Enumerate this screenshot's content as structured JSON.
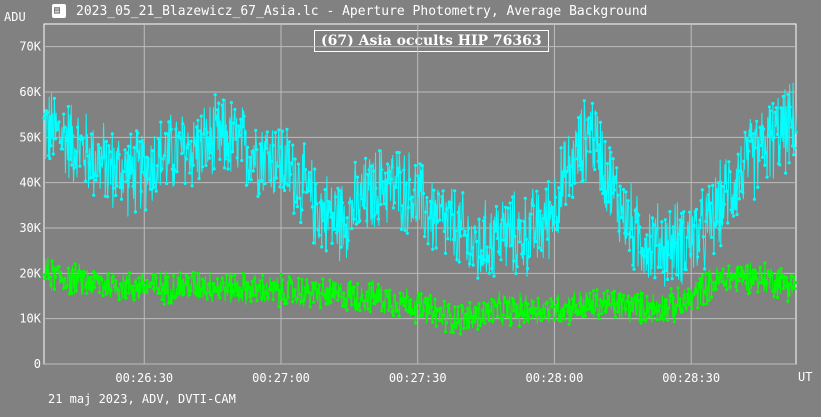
{
  "window": {
    "title": "2023_05_21_Blazewicz_67_Asia.lc - Aperture Photometry, Average Background",
    "icon": "photometry-app-icon"
  },
  "chart_data": {
    "type": "scatter",
    "title": "(67) Asia occults HIP 76363",
    "ylabel": "ADU",
    "xlabel": "UT",
    "footer": "21 maj 2023, ADV, DVTI-CAM",
    "ylim": [
      0,
      75000
    ],
    "xlim": [
      "00:26:08",
      "00:28:53"
    ],
    "x_ticks": [
      "00:26:30",
      "00:27:00",
      "00:27:30",
      "00:28:00",
      "00:28:30"
    ],
    "y_ticks": [
      "0",
      "10K",
      "20K",
      "30K",
      "40K",
      "50K",
      "60K",
      "70K"
    ],
    "y_tick_values": [
      0,
      10000,
      20000,
      30000,
      40000,
      50000,
      60000,
      70000
    ],
    "grid": true,
    "colors": {
      "background": "#818181",
      "grid": "#bdbdbd",
      "axis": "#ffffff"
    },
    "series": [
      {
        "color": "#00ffff",
        "time_s": [
          0,
          5,
          10,
          15,
          20,
          25,
          30,
          35,
          40,
          45,
          50,
          55,
          60,
          65,
          70,
          75,
          80,
          85,
          90,
          95,
          100,
          105,
          110,
          115,
          120,
          125,
          130,
          135,
          140,
          145,
          150,
          155,
          160,
          165
        ],
        "values": [
          52000,
          50000,
          46000,
          43000,
          42000,
          45000,
          47000,
          48000,
          50000,
          47000,
          46000,
          42000,
          34000,
          32000,
          36000,
          40000,
          38000,
          33000,
          30000,
          25000,
          29000,
          28000,
          31000,
          42000,
          52000,
          38000,
          28000,
          26000,
          27000,
          29000,
          38000,
          45000,
          50000,
          53000
        ]
      },
      {
        "color": "#00ff00",
        "time_s": [
          0,
          5,
          10,
          15,
          20,
          25,
          30,
          35,
          40,
          45,
          50,
          55,
          60,
          65,
          70,
          75,
          80,
          85,
          90,
          95,
          100,
          105,
          110,
          115,
          120,
          125,
          130,
          135,
          140,
          145,
          150,
          155,
          160,
          165
        ],
        "values": [
          20000,
          19000,
          18000,
          17500,
          17000,
          17000,
          17000,
          17500,
          17000,
          16500,
          16000,
          16000,
          15500,
          15000,
          15000,
          14500,
          13500,
          11500,
          10000,
          10500,
          12000,
          12000,
          12000,
          12500,
          13000,
          13000,
          12500,
          12500,
          13000,
          17000,
          19000,
          19500,
          18500,
          17500
        ]
      }
    ]
  }
}
